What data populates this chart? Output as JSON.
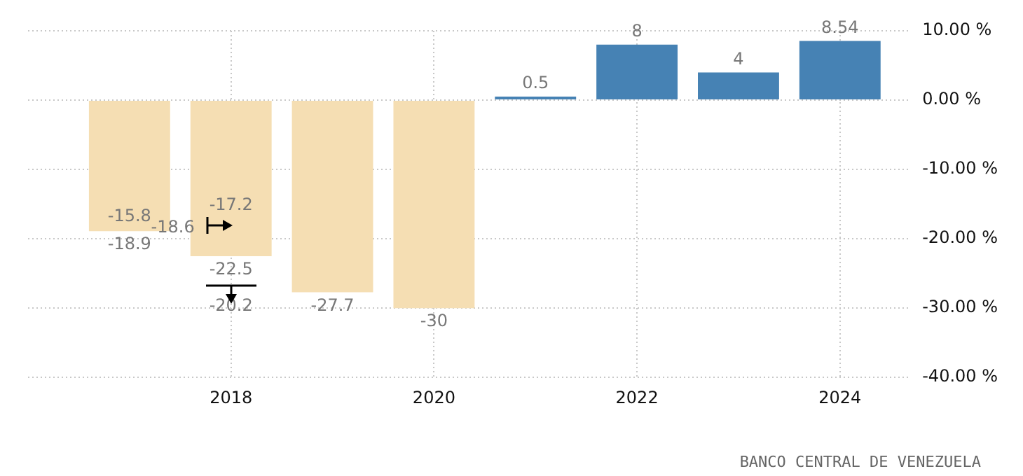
{
  "chart_data": {
    "type": "bar",
    "x": [
      2017,
      2018,
      2019,
      2020,
      2021,
      2022,
      2023,
      2024
    ],
    "values": [
      -18.9,
      -22.5,
      -27.7,
      -30,
      0.5,
      8,
      4,
      8.54
    ],
    "colors": [
      "#f5deb3",
      "#f5deb3",
      "#f5deb3",
      "#f5deb3",
      "#4682b4",
      "#4682b4",
      "#4682b4",
      "#4682b4"
    ],
    "xlim": [
      2016,
      2024.7
    ],
    "xticks": [
      2018,
      2020,
      2022,
      2024
    ],
    "ylim": [
      -40,
      10
    ],
    "yticks": [
      {
        "value": 10,
        "label": "10.00 %"
      },
      {
        "value": 0,
        "label": "0.00 %"
      },
      {
        "value": -10,
        "label": "-10.00 %"
      },
      {
        "value": -20,
        "label": "-20.00 %"
      },
      {
        "value": -30,
        "label": "-30.00 %"
      },
      {
        "value": -40,
        "label": "-40.00 %"
      }
    ],
    "grid": true,
    "legend": false,
    "data_labels": true,
    "annotations": [
      "-15.8",
      "-17.2",
      "-18.6",
      "-20.2",
      "BANCO CENTRAL DE VENEZUELA"
    ]
  }
}
